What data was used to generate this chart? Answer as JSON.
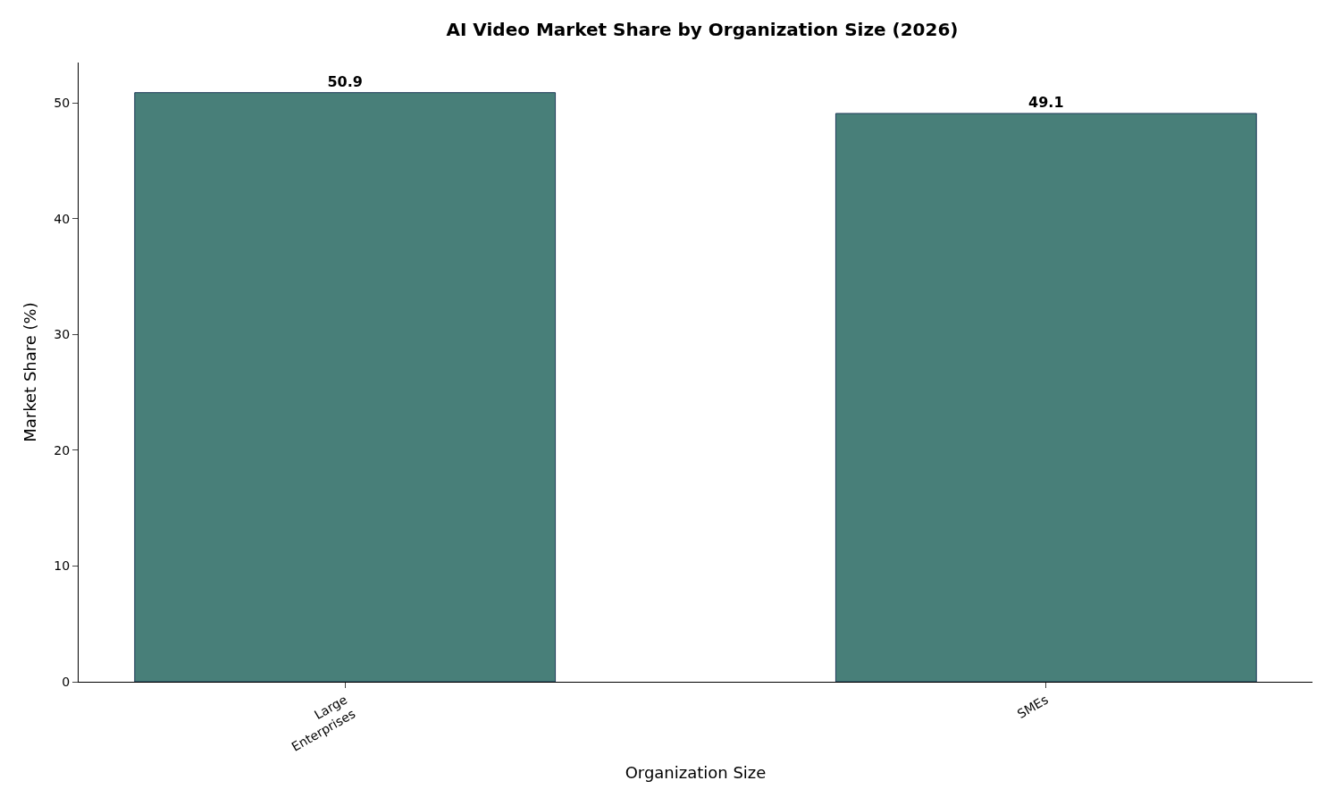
{
  "chart_data": {
    "type": "bar",
    "title": "AI Video Market Share by Organization Size (2026)",
    "xlabel": "Organization Size",
    "ylabel": "Market Share (%)",
    "categories": [
      "Large\nEnterprises",
      "SMEs"
    ],
    "values": [
      50.9,
      49.1
    ],
    "color": "#487f79",
    "ylim": [
      0,
      53.5
    ],
    "yticks": [
      0,
      10,
      20,
      30,
      40,
      50
    ],
    "grid": false,
    "data_labels": true
  }
}
